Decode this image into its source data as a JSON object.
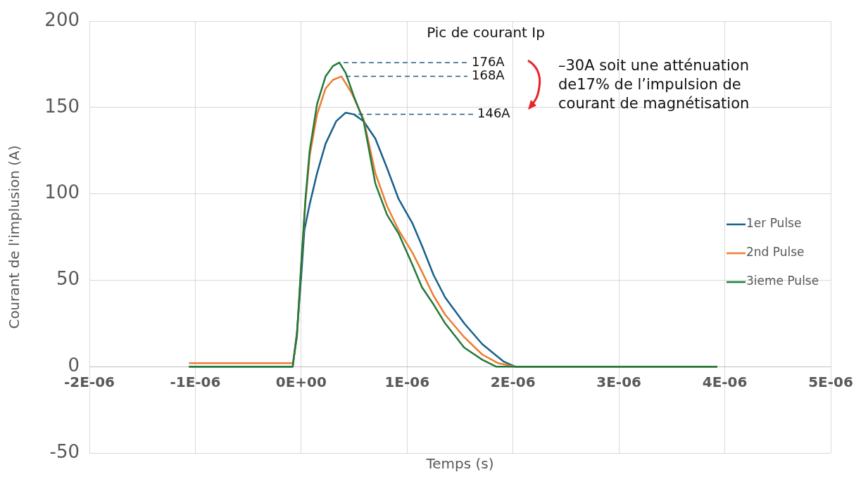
{
  "chart_data": {
    "type": "line",
    "xlabel": "Temps (s)",
    "ylabel": "Courant de l'implusion (A)",
    "xlim": [
      -2e-06,
      5e-06
    ],
    "xticks": [
      {
        "value": -2e-06,
        "label": "-2E-06"
      },
      {
        "value": -1e-06,
        "label": "-1E-06"
      },
      {
        "value": 0,
        "label": "0E+00"
      },
      {
        "value": 1e-06,
        "label": "1E-06"
      },
      {
        "value": 2e-06,
        "label": "2E-06"
      },
      {
        "value": 3e-06,
        "label": "3E-06"
      },
      {
        "value": 4e-06,
        "label": "4E-06"
      },
      {
        "value": 5e-06,
        "label": "5E-06"
      }
    ],
    "ylim": [
      -50,
      200
    ],
    "yticks": [
      -50,
      0,
      50,
      100,
      150,
      200
    ],
    "grid": true,
    "legend": "right",
    "marker": "none",
    "line_style": "solid",
    "series": [
      {
        "name": "1er Pulse",
        "color": "#17608a",
        "x": [
          -1.06e-06,
          -8e-08,
          -7e-08,
          -4e-08,
          0,
          3e-08,
          8e-08,
          1.5e-07,
          2.3e-07,
          3.3e-07,
          4.2e-07,
          5e-07,
          5.9e-07,
          7e-07,
          8.1e-07,
          9.2e-07,
          1.05e-06,
          1.14e-06,
          1.25e-06,
          1.36e-06,
          1.54e-06,
          1.71e-06,
          1.91e-06,
          2.02e-06,
          3.93e-06
        ],
        "values": [
          0,
          0,
          5,
          20,
          52,
          79,
          94,
          112,
          129,
          142,
          147,
          146,
          142,
          132,
          115,
          97,
          83,
          70,
          53,
          40,
          25,
          13,
          3,
          0,
          0
        ]
      },
      {
        "name": "2nd Pulse",
        "color": "#ed7d31",
        "x": [
          -1.06e-06,
          -8e-08,
          -7e-08,
          -4e-08,
          0,
          4e-08,
          8e-08,
          1.5e-07,
          2.3e-07,
          3e-07,
          3.8e-07,
          4.8e-07,
          5.9e-07,
          7e-07,
          8.1e-07,
          9.2e-07,
          1.05e-06,
          1.14e-06,
          1.25e-06,
          1.36e-06,
          1.54e-06,
          1.71e-06,
          1.86e-06,
          2.02e-06,
          3.93e-06
        ],
        "values": [
          2,
          2,
          5,
          18,
          59,
          95,
          122,
          146,
          161,
          166,
          168,
          158,
          143,
          112,
          93,
          79,
          66,
          55,
          41,
          30,
          17,
          7,
          2,
          0,
          0
        ]
      },
      {
        "name": "3ieme Pulse",
        "color": "#217a3a",
        "x": [
          -1.06e-06,
          -8e-08,
          -7e-08,
          -4e-08,
          0,
          4e-08,
          8e-08,
          1.5e-07,
          2.3e-07,
          3e-07,
          3.6e-07,
          4.2e-07,
          5e-07,
          5.9e-07,
          7e-07,
          8.1e-07,
          9.2e-07,
          1.05e-06,
          1.14e-06,
          1.25e-06,
          1.36e-06,
          1.54e-06,
          1.71e-06,
          1.84e-06,
          3.93e-06
        ],
        "values": [
          0,
          0,
          5,
          18,
          59,
          97,
          125,
          152,
          168,
          174,
          176,
          170,
          156,
          142,
          106,
          88,
          77,
          59,
          46,
          36,
          25,
          11,
          4,
          0,
          0
        ]
      }
    ],
    "annotations": [
      "Pic de courant Ip",
      {
        "text": "176A",
        "x": 3.6e-07,
        "y": 176
      },
      {
        "text": "168A",
        "x": 3.8e-07,
        "y": 168
      },
      {
        "text": "146A",
        "x": 5e-07,
        "y": 146
      },
      "–30A soit une atténuation de17% de l’impulsion de courant de magnétisation"
    ]
  }
}
